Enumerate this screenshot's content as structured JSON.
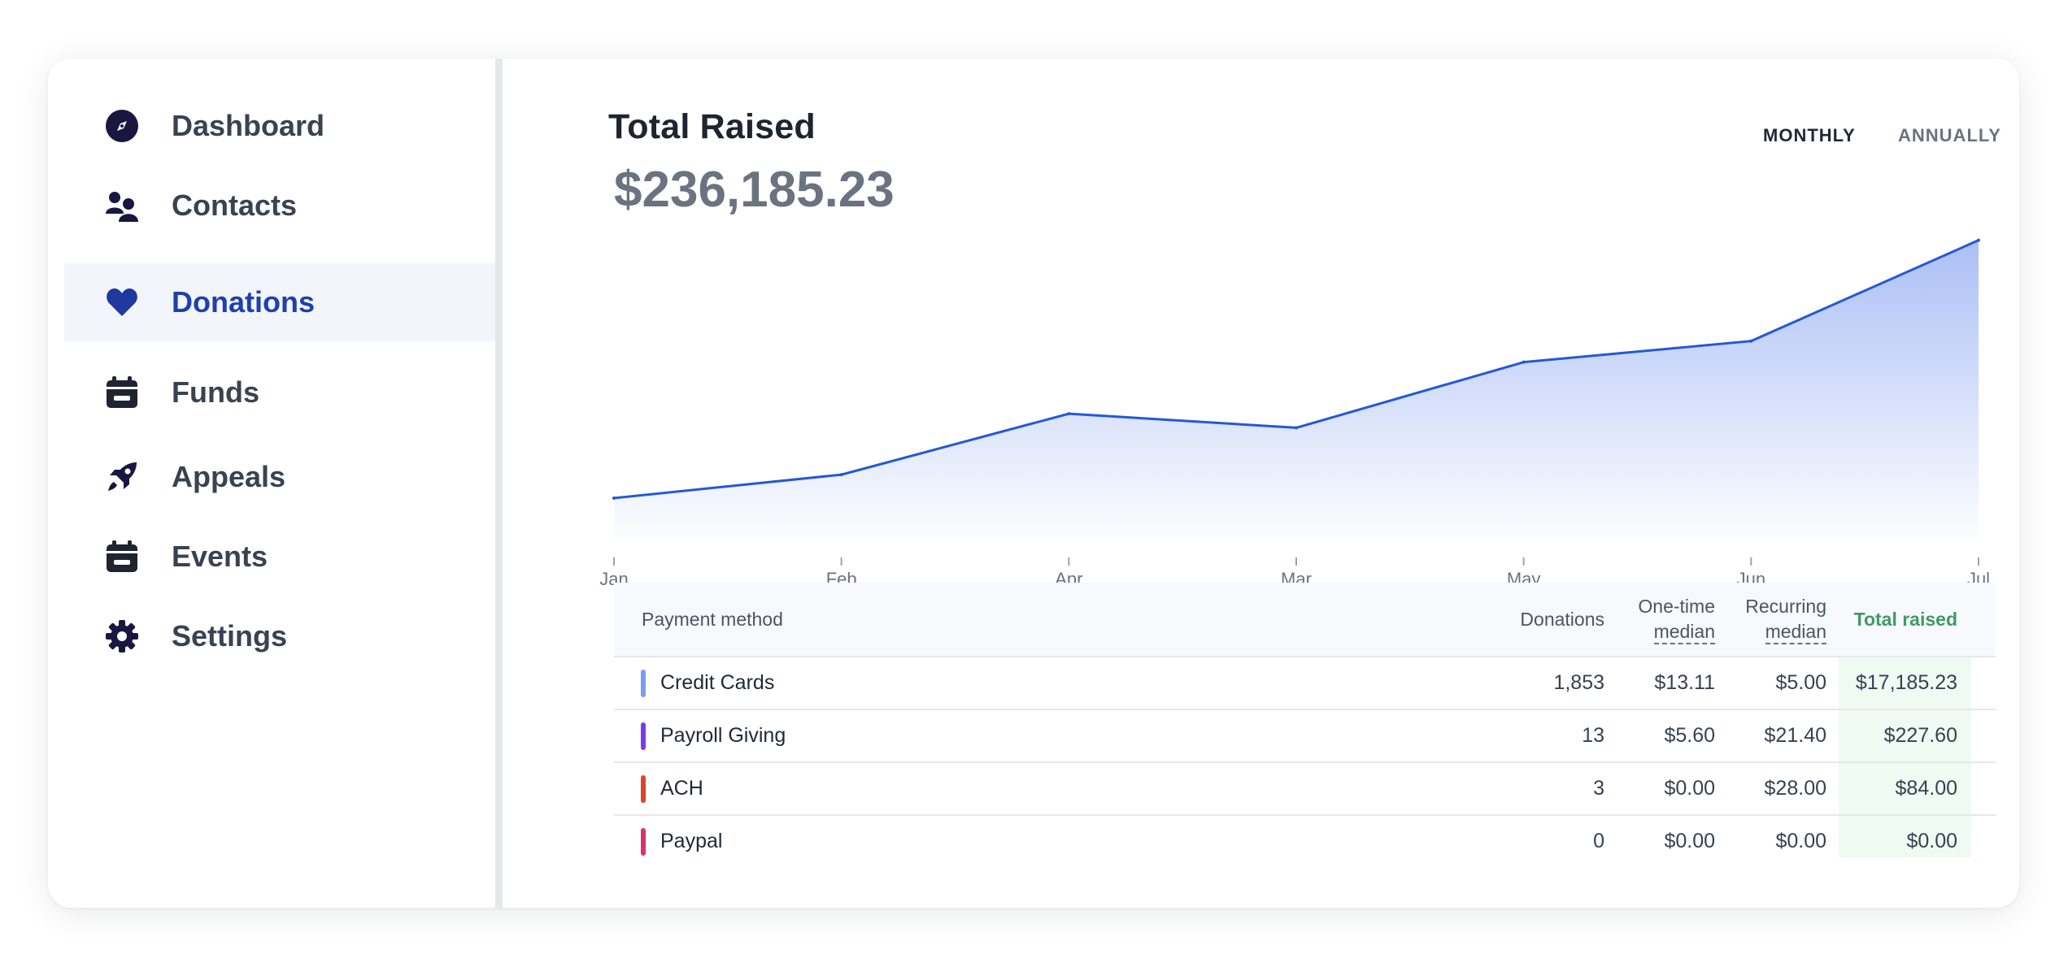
{
  "sidebar": {
    "items": [
      {
        "label": "Dashboard",
        "icon": "compass-icon"
      },
      {
        "label": "Contacts",
        "icon": "users-icon"
      },
      {
        "label": "Donations",
        "icon": "heart-icon",
        "active": true
      },
      {
        "label": "Funds",
        "icon": "calendar-icon"
      },
      {
        "label": "Appeals",
        "icon": "rocket-icon"
      },
      {
        "label": "Events",
        "icon": "calendar-icon"
      },
      {
        "label": "Settings",
        "icon": "gear-icon"
      }
    ]
  },
  "main": {
    "title": "Total Raised",
    "amount": "$236,185.23",
    "toggles": {
      "monthly": "MONTHLY",
      "annually": "ANNUALLY",
      "selected": "MONTHLY"
    }
  },
  "chart_data": {
    "type": "area",
    "categories": [
      "Jan",
      "Feb",
      "Apr",
      "Mar",
      "May",
      "Jun",
      "Jul"
    ],
    "values": [
      12,
      22,
      48,
      42,
      70,
      79,
      122
    ],
    "ylim": [
      -5,
      125
    ],
    "grid": false,
    "line_color": "#2558d8",
    "fill_color": "#a7bcf5"
  },
  "table": {
    "headers": {
      "method": "Payment method",
      "donations": "Donations",
      "onetime_line1": "One-time",
      "onetime_line2": "median",
      "recurring_line1": "Recurring",
      "recurring_line2": "median",
      "total": "Total raised"
    },
    "rows": [
      {
        "method": "Credit Cards",
        "color": "#7b9cf0",
        "donations": "1,853",
        "onetime": "$13.11",
        "recurring": "$5.00",
        "total": "$17,185.23"
      },
      {
        "method": "Payroll Giving",
        "color": "#7c3aed",
        "donations": "13",
        "onetime": "$5.60",
        "recurring": "$21.40",
        "total": "$227.60"
      },
      {
        "method": "ACH",
        "color": "#d9472b",
        "donations": "3",
        "onetime": "$0.00",
        "recurring": "$28.00",
        "total": "$84.00"
      },
      {
        "method": "Paypal",
        "color": "#d6336c",
        "donations": "0",
        "onetime": "$0.00",
        "recurring": "$0.00",
        "total": "$0.00"
      }
    ]
  }
}
